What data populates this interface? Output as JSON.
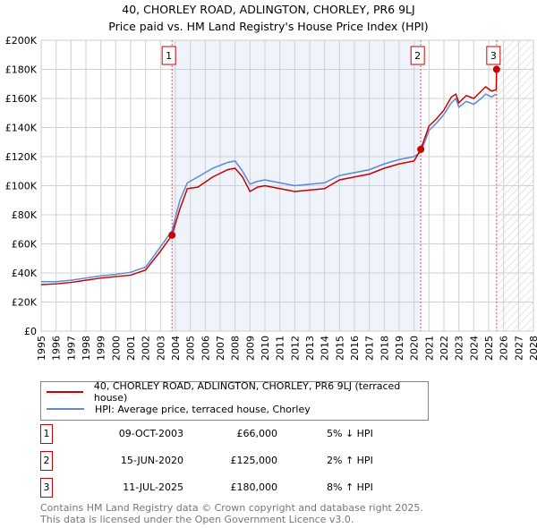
{
  "chart_data": {
    "type": "line",
    "title": "40, CHORLEY ROAD, ADLINGTON, CHORLEY, PR6 9LJ",
    "subtitle": "Price paid vs. HM Land Registry's House Price Index (HPI)",
    "xlim": [
      1995,
      2028
    ],
    "ylim": [
      0,
      200000
    ],
    "x_ticks": [
      "1995",
      "1996",
      "1997",
      "1998",
      "1999",
      "2000",
      "2001",
      "2002",
      "2003",
      "2004",
      "2005",
      "2006",
      "2007",
      "2008",
      "2009",
      "2010",
      "2011",
      "2012",
      "2013",
      "2014",
      "2015",
      "2016",
      "2017",
      "2018",
      "2019",
      "2020",
      "2021",
      "2022",
      "2023",
      "2024",
      "2025",
      "2026",
      "2027",
      "2028"
    ],
    "y_ticks": [
      {
        "v": 0,
        "l": "£0"
      },
      {
        "v": 20000,
        "l": "£20K"
      },
      {
        "v": 40000,
        "l": "£40K"
      },
      {
        "v": 60000,
        "l": "£60K"
      },
      {
        "v": 80000,
        "l": "£80K"
      },
      {
        "v": 100000,
        "l": "£100K"
      },
      {
        "v": 120000,
        "l": "£120K"
      },
      {
        "v": 140000,
        "l": "£140K"
      },
      {
        "v": 160000,
        "l": "£160K"
      },
      {
        "v": 180000,
        "l": "£180K"
      },
      {
        "v": 200000,
        "l": "£200K"
      }
    ],
    "series": [
      {
        "name": "40, CHORLEY ROAD, ADLINGTON, CHORLEY, PR6 9LJ (terraced house)",
        "color": "#cc0000",
        "x": [
          1995,
          1996,
          1997,
          1998,
          1999,
          2000,
          2001,
          2002,
          2003,
          2003.77,
          2004.3,
          2004.8,
          2005.5,
          2006.5,
          2007.5,
          2008,
          2008.5,
          2009,
          2009.5,
          2010,
          2011,
          2012,
          2013,
          2014,
          2015,
          2016,
          2017,
          2018,
          2019,
          2020,
          2020.45,
          2021,
          2021.5,
          2022,
          2022.5,
          2022.8,
          2023,
          2023.5,
          2024,
          2024.5,
          2024.8,
          2025.2,
          2025.5,
          2025.53
        ],
        "y": [
          32000,
          32500,
          33500,
          35000,
          36500,
          37500,
          38500,
          42000,
          55000,
          66000,
          84000,
          98000,
          99000,
          106000,
          111000,
          112000,
          106000,
          96000,
          99000,
          100000,
          98000,
          96000,
          97000,
          98000,
          104000,
          106000,
          108000,
          112000,
          115000,
          117000,
          125000,
          141000,
          146000,
          152000,
          161000,
          163000,
          157000,
          162000,
          160000,
          165000,
          168000,
          165000,
          166000,
          180000
        ]
      },
      {
        "name": "HPI: Average price, terraced house, Chorley",
        "color": "#5b8bd0",
        "x": [
          1995,
          1996,
          1997,
          1998,
          1999,
          2000,
          2001,
          2002,
          2003,
          2003.77,
          2004.3,
          2004.8,
          2005.5,
          2006.5,
          2007.5,
          2008,
          2008.5,
          2009,
          2009.5,
          2010,
          2011,
          2012,
          2013,
          2014,
          2015,
          2016,
          2017,
          2018,
          2019,
          2020,
          2020.45,
          2021,
          2021.5,
          2022,
          2022.5,
          2022.8,
          2023,
          2023.5,
          2024,
          2024.5,
          2024.8,
          2025.2,
          2025.5
        ],
        "y": [
          34000,
          34000,
          35000,
          36500,
          38000,
          39000,
          40500,
          44000,
          58000,
          69000,
          90000,
          102000,
          106000,
          112000,
          116000,
          117000,
          110000,
          101000,
          103000,
          104000,
          102000,
          100000,
          101000,
          102000,
          107000,
          109000,
          111000,
          115000,
          118000,
          120000,
          123000,
          138000,
          143000,
          149000,
          157000,
          160000,
          154000,
          158000,
          156000,
          160000,
          163000,
          161000,
          163000
        ]
      }
    ],
    "sales": [
      {
        "n": "1",
        "x": 2003.77,
        "y": 66000
      },
      {
        "n": "2",
        "x": 2020.45,
        "y": 125000
      },
      {
        "n": "3",
        "x": 2025.53,
        "y": 180000
      }
    ]
  },
  "legend": {
    "red": "40, CHORLEY ROAD, ADLINGTON, CHORLEY, PR6 9LJ (terraced house)",
    "blue": "HPI: Average price, terraced house, Chorley"
  },
  "table": [
    {
      "n": "1",
      "date": "09-OCT-2003",
      "price": "£66,000",
      "hpi": "5% ↓ HPI"
    },
    {
      "n": "2",
      "date": "15-JUN-2020",
      "price": "£125,000",
      "hpi": "2% ↑ HPI"
    },
    {
      "n": "3",
      "date": "11-JUL-2025",
      "price": "£180,000",
      "hpi": "8% ↑ HPI"
    }
  ],
  "footer": {
    "line1": "Contains HM Land Registry data © Crown copyright and database right 2025.",
    "line2": "This data is licensed under the Open Government Licence v3.0."
  }
}
